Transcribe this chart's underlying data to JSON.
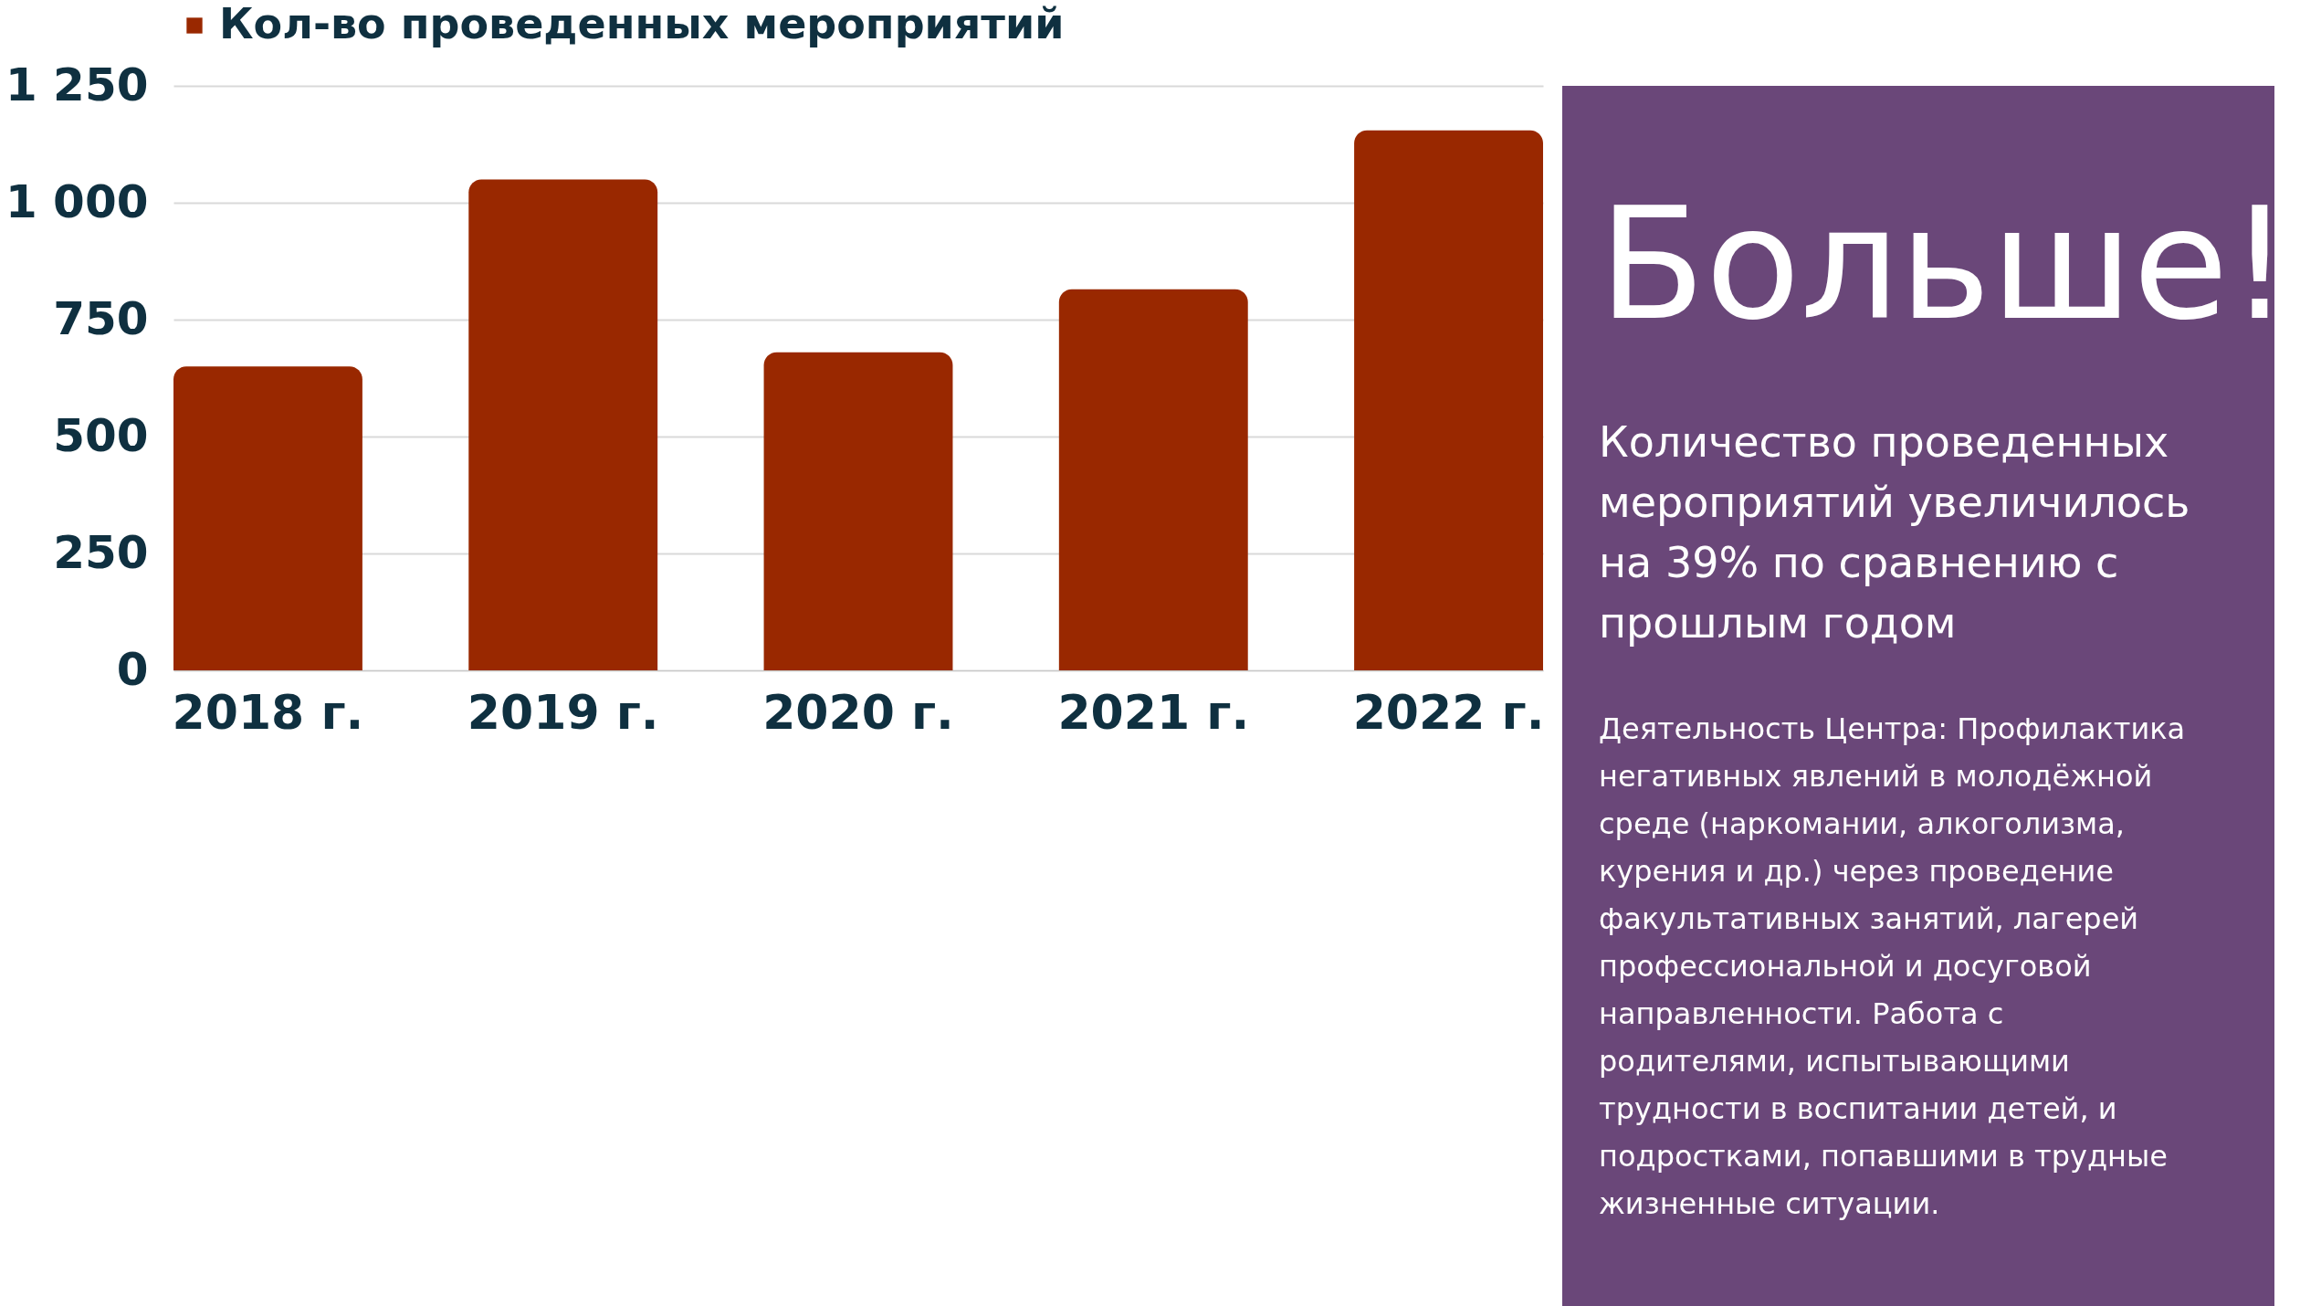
{
  "chart_data": [
    {
      "type": "bar",
      "categories": [
        "2018 г.",
        "2019 г.",
        "2020 г.",
        "2021 г.",
        "2022 г."
      ],
      "series": [
        {
          "name": "Кол-во проведенных мероприятий",
          "color": "#992800",
          "values": [
            650,
            1050,
            680,
            815,
            1155
          ]
        }
      ],
      "ylim": [
        0,
        1250
      ],
      "yticks": [
        0,
        250,
        500,
        750,
        {
          "value": 1000,
          "label": "1 000"
        },
        {
          "value": 1250,
          "label": "1 250"
        }
      ],
      "grid": "y",
      "legend": "top"
    },
    {
      "type": "other",
      "title": "Больше!",
      "annotations": [
        "Количество проведенных мероприятий увеличилось на 39% по сравнению с прошлым годом",
        "Деятельность Центра: Профилактика негативных явлений в молодёжной среде (наркомании, алкоголизма, курения и др.) через проведение факультативных занятий, лагерей профессиональной и досуговой направленности. Работа с родителями, испытывающими трудности в воспитании детей, и подростками, попавшими в трудные жизненные ситуации."
      ]
    }
  ]
}
